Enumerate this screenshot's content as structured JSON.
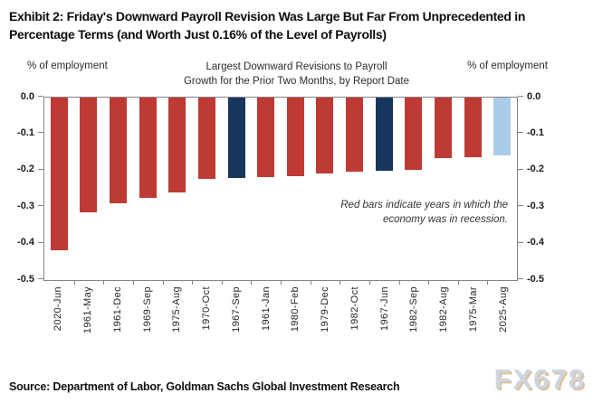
{
  "title": "Exhibit 2: Friday's Downward Payroll Revision Was Large But Far From Unprecedented in Percentage Terms (and Worth Just 0.16% of the Level of Payrolls)",
  "chart_data": {
    "type": "bar",
    "title_line1": "Largest Downward Revisions to Payroll",
    "title_line2": "Growth for the Prior Two Months, by Report Date",
    "left_axis_label": "% of employment",
    "right_axis_label": "% of employment",
    "ylim": [
      -0.5,
      0.0
    ],
    "ytick_labels": [
      "0.0",
      "-0.1",
      "-0.2",
      "-0.3",
      "-0.4",
      "-0.5"
    ],
    "grid": "off",
    "categories": [
      "2020-Jun",
      "1961-May",
      "1961-Dec",
      "1969-Sep",
      "1975-Aug",
      "1970-Oct",
      "1967-Sep",
      "1961-Jan",
      "1980-Feb",
      "1979-Dec",
      "1982-Oct",
      "1967-Jun",
      "1982-Sep",
      "1982-Aug",
      "1975-Mar",
      "2025-Aug"
    ],
    "values": [
      -0.42,
      -0.315,
      -0.29,
      -0.275,
      -0.26,
      -0.225,
      -0.222,
      -0.22,
      -0.217,
      -0.21,
      -0.205,
      -0.202,
      -0.2,
      -0.168,
      -0.165,
      -0.16
    ],
    "bar_colors": [
      "red",
      "red",
      "red",
      "red",
      "red",
      "red",
      "navy",
      "red",
      "red",
      "red",
      "red",
      "navy",
      "red",
      "red",
      "red",
      "lightblue"
    ],
    "palette": {
      "red": "#be3a34",
      "navy": "#17365d",
      "lightblue": "#a9cce8"
    },
    "annotation_line1": "Red bars indicate years in which the",
    "annotation_line2": "economy was in recession."
  },
  "source": "Source: Department of Labor, Goldman Sachs Global Investment Research",
  "watermark": "FX678"
}
